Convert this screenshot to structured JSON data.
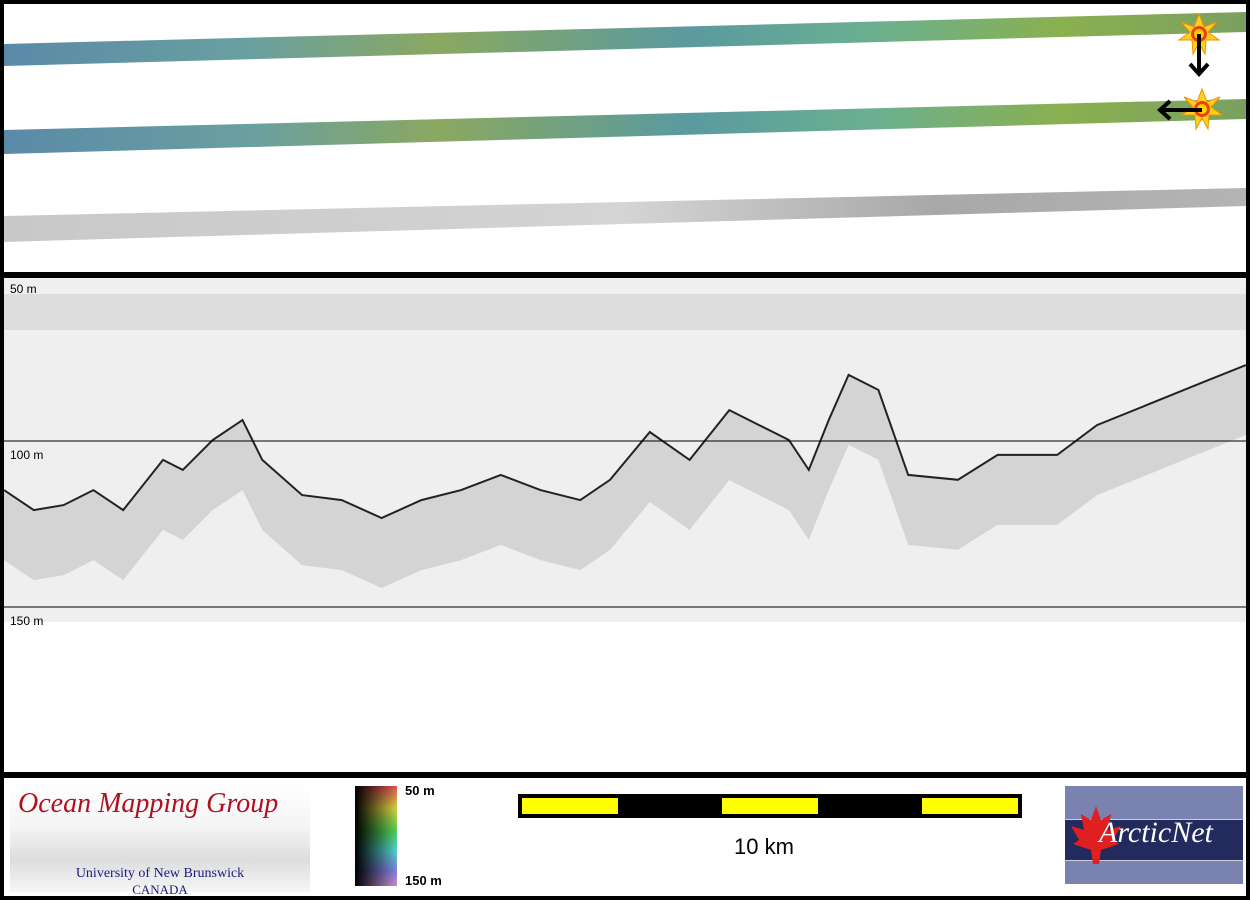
{
  "swaths": [
    {
      "type": "bathymetry-shaded"
    },
    {
      "type": "bathymetry-shaded"
    },
    {
      "type": "backscatter"
    }
  ],
  "markers": [
    {
      "icon": "sun-marker-icon",
      "arrow": "arrow-down-icon"
    },
    {
      "icon": "sun-marker-icon",
      "arrow": "arrow-left-icon"
    }
  ],
  "profile": {
    "depth_labels": [
      "50 m",
      "100 m",
      "150 m"
    ],
    "distance_km": [
      0,
      0.6,
      1.2,
      1.8,
      2.4,
      3.2,
      3.6,
      4.2,
      4.8,
      5.2,
      6,
      6.8,
      7.6,
      8.4,
      9.2,
      10,
      10.8,
      11.6,
      12.2,
      13,
      13.8,
      14.6,
      15.2,
      15.8,
      16.2,
      16.6,
      17,
      17.6,
      18.2,
      19.2,
      20,
      21.2,
      22,
      23,
      24,
      25
    ],
    "seafloor_depth_m": [
      114.8,
      120.8,
      119.3,
      114.8,
      120.8,
      105.7,
      108.7,
      99.7,
      93.7,
      105.7,
      116.3,
      117.8,
      123.2,
      117.8,
      114.8,
      110.2,
      114.8,
      117.8,
      111.7,
      97.3,
      105.7,
      90.7,
      95.2,
      99.7,
      108.7,
      93.7,
      80.1,
      84.6,
      110.2,
      111.7,
      104.2,
      104.2,
      95.2,
      89.2,
      83.1,
      77.1
    ]
  },
  "footer": {
    "logo_left": {
      "title": "Ocean Mapping Group",
      "line1": "University of New Brunswick",
      "line2": "CANADA"
    },
    "colorbar": {
      "top": "50 m",
      "bottom": "150 m"
    },
    "scale": {
      "label": "10 km",
      "colors": [
        "#ffff00",
        "#000000"
      ]
    },
    "logo_right": {
      "text": "ArcticNet"
    }
  }
}
